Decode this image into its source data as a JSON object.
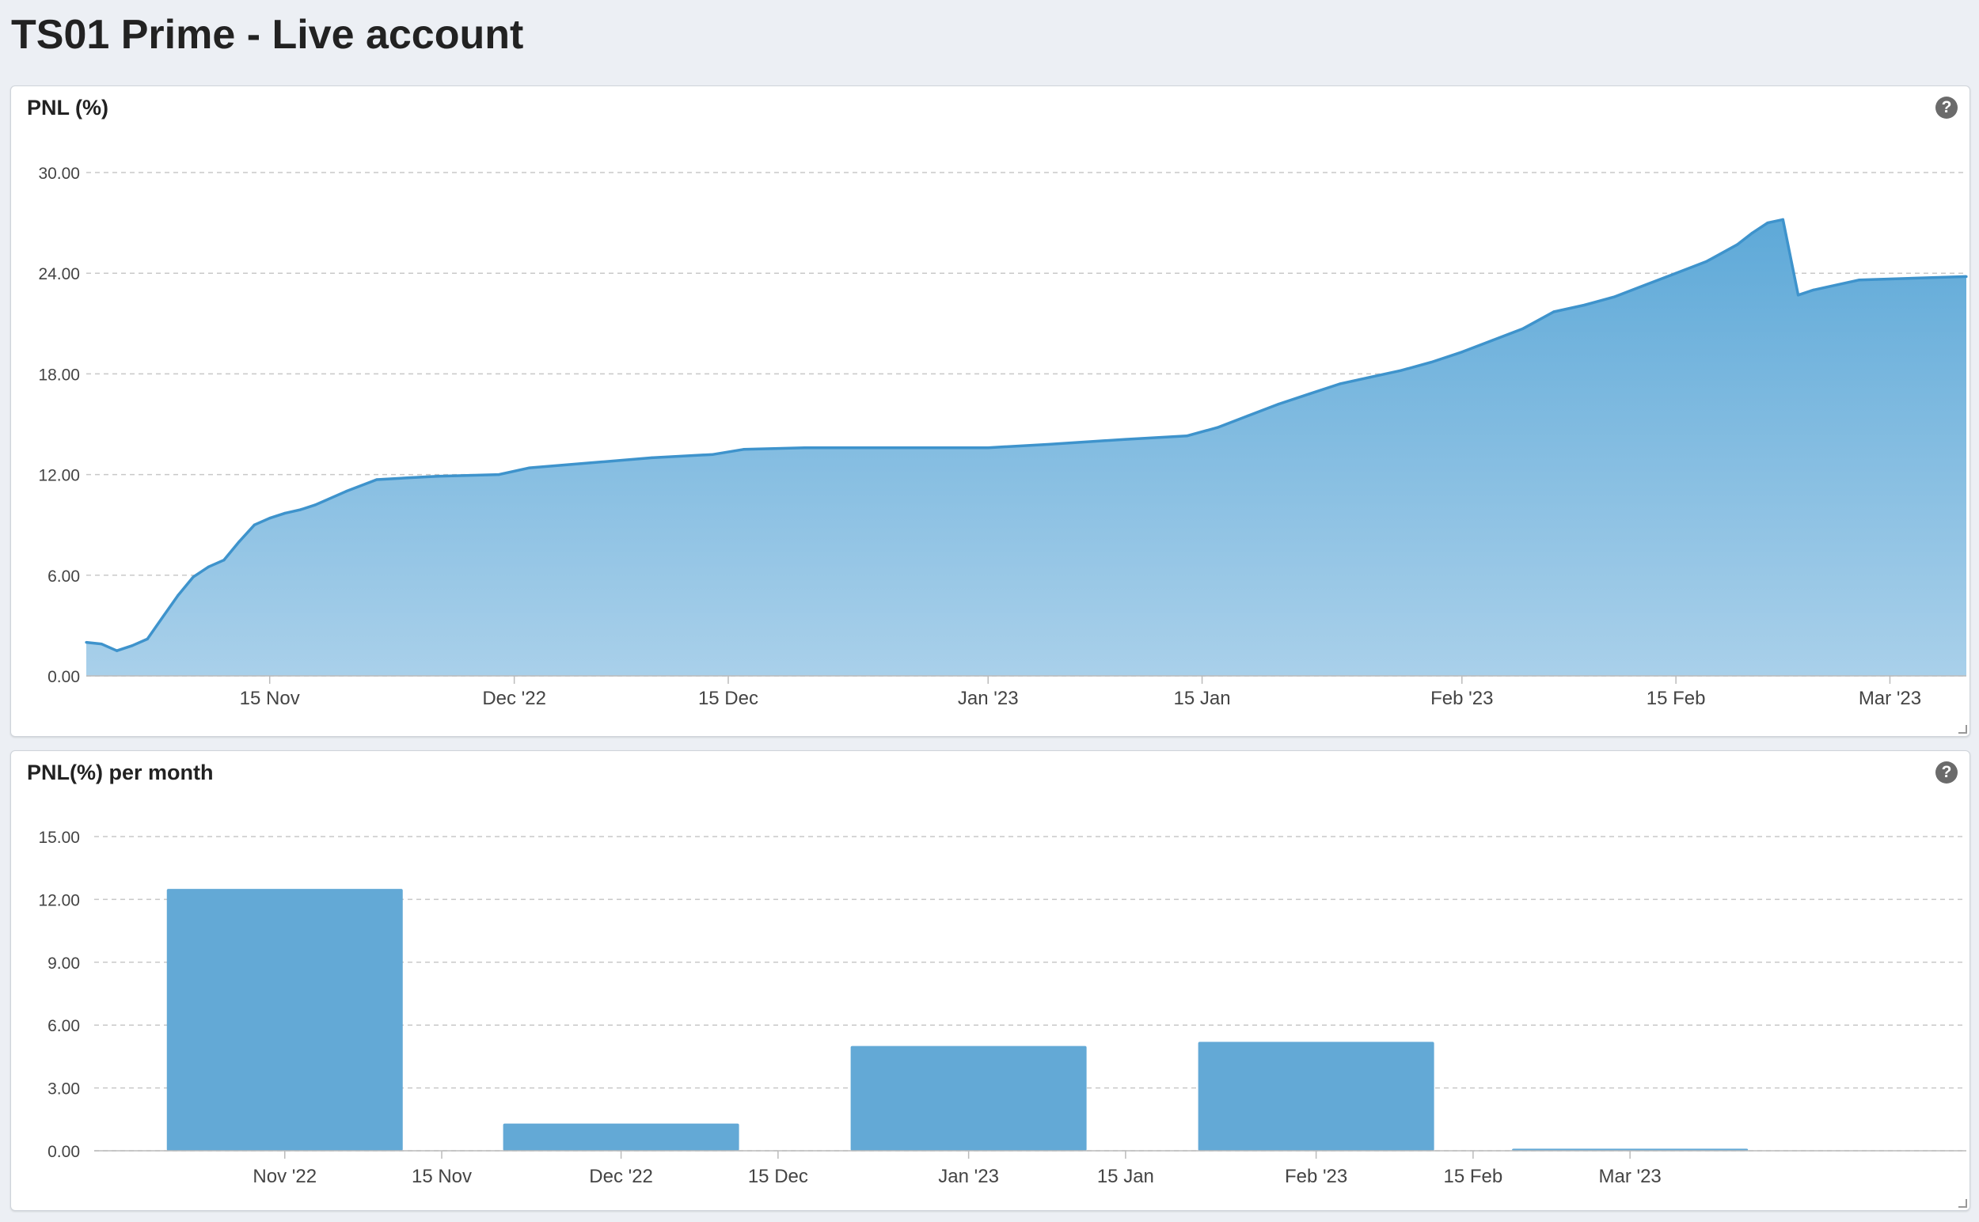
{
  "page": {
    "title": "TS01 Prime - Live account"
  },
  "panels": [
    {
      "title": "PNL (%)",
      "help_label": "?"
    },
    {
      "title": "PNL(%) per month",
      "help_label": "?"
    }
  ],
  "icons": {
    "help": "question-circle-icon",
    "resize": "resize-handle-icon"
  },
  "colors": {
    "series": "#5ea9d8",
    "line": "#3e93cc",
    "bar": "#63a9d6",
    "grid": "#c8c8c8"
  },
  "chart_data": [
    {
      "type": "area",
      "title": "PNL (%)",
      "x_axis": "date",
      "x_ticks": [
        {
          "date": "2022-11-15",
          "label": "15 Nov"
        },
        {
          "date": "2022-12-01",
          "label": "Dec '22"
        },
        {
          "date": "2022-12-15",
          "label": "15 Dec"
        },
        {
          "date": "2023-01-01",
          "label": "Jan '23"
        },
        {
          "date": "2023-01-15",
          "label": "15 Jan"
        },
        {
          "date": "2023-02-01",
          "label": "Feb '23"
        },
        {
          "date": "2023-02-15",
          "label": "15 Feb"
        },
        {
          "date": "2023-03-01",
          "label": "Mar '23"
        }
      ],
      "xlim": [
        "2022-11-03",
        "2023-03-06"
      ],
      "ylim": [
        0,
        30
      ],
      "y_ticks": [
        "0.00",
        "6.00",
        "12.00",
        "18.00",
        "24.00",
        "30.00"
      ],
      "grid": true,
      "series": [
        {
          "x": [
            "2022-11-03",
            "2022-11-04",
            "2022-11-05",
            "2022-11-06",
            "2022-11-07",
            "2022-11-08",
            "2022-11-09",
            "2022-11-10",
            "2022-11-11",
            "2022-11-12",
            "2022-11-13",
            "2022-11-14",
            "2022-11-15",
            "2022-11-16",
            "2022-11-17",
            "2022-11-18",
            "2022-11-20",
            "2022-11-22",
            "2022-11-24",
            "2022-11-26",
            "2022-11-30",
            "2022-12-02",
            "2022-12-06",
            "2022-12-10",
            "2022-12-14",
            "2022-12-16",
            "2022-12-20",
            "2023-01-01",
            "2023-01-05",
            "2023-01-10",
            "2023-01-14",
            "2023-01-16",
            "2023-01-18",
            "2023-01-20",
            "2023-01-22",
            "2023-01-24",
            "2023-01-26",
            "2023-01-28",
            "2023-01-30",
            "2023-02-01",
            "2023-02-03",
            "2023-02-05",
            "2023-02-07",
            "2023-02-09",
            "2023-02-11",
            "2023-02-13",
            "2023-02-15",
            "2023-02-17",
            "2023-02-19",
            "2023-02-20",
            "2023-02-21",
            "2023-02-22",
            "2023-02-23",
            "2023-02-24",
            "2023-02-27",
            "2023-03-06"
          ],
          "y": [
            2.0,
            1.9,
            1.5,
            1.8,
            2.2,
            3.5,
            4.8,
            5.9,
            6.5,
            6.9,
            8.0,
            9.0,
            9.4,
            9.7,
            9.9,
            10.2,
            11.0,
            11.7,
            11.8,
            11.9,
            12.0,
            12.4,
            12.7,
            13.0,
            13.2,
            13.5,
            13.6,
            13.6,
            13.8,
            14.1,
            14.3,
            14.8,
            15.5,
            16.2,
            16.8,
            17.4,
            17.8,
            18.2,
            18.7,
            19.3,
            20.0,
            20.7,
            21.7,
            22.1,
            22.6,
            23.3,
            24.0,
            24.7,
            25.7,
            26.4,
            27.0,
            27.2,
            22.7,
            23.0,
            23.6,
            23.8
          ]
        }
      ]
    },
    {
      "type": "bar",
      "title": "PNL(%) per month",
      "categories": [
        "Nov '22",
        "Dec '22",
        "Jan '23",
        "Feb '23",
        "Mar '23"
      ],
      "category_dates": [
        "2022-11-01",
        "2022-12-01",
        "2023-01-01",
        "2023-02-01",
        "2023-03-01"
      ],
      "x_ticks": [
        {
          "date": "2022-11-01",
          "label": "Nov '22"
        },
        {
          "date": "2022-11-15",
          "label": "15 Nov"
        },
        {
          "date": "2022-12-01",
          "label": "Dec '22"
        },
        {
          "date": "2022-12-15",
          "label": "15 Dec"
        },
        {
          "date": "2023-01-01",
          "label": "Jan '23"
        },
        {
          "date": "2023-01-15",
          "label": "15 Jan"
        },
        {
          "date": "2023-02-01",
          "label": "Feb '23"
        },
        {
          "date": "2023-02-15",
          "label": "15 Feb"
        },
        {
          "date": "2023-03-01",
          "label": "Mar '23"
        }
      ],
      "xlim": [
        "2022-10-15",
        "2023-03-31"
      ],
      "values": [
        12.5,
        1.3,
        5.0,
        5.2,
        0.1
      ],
      "ylim": [
        0,
        15
      ],
      "y_ticks": [
        "0.00",
        "3.00",
        "6.00",
        "9.00",
        "12.00",
        "15.00"
      ],
      "grid": true
    }
  ]
}
